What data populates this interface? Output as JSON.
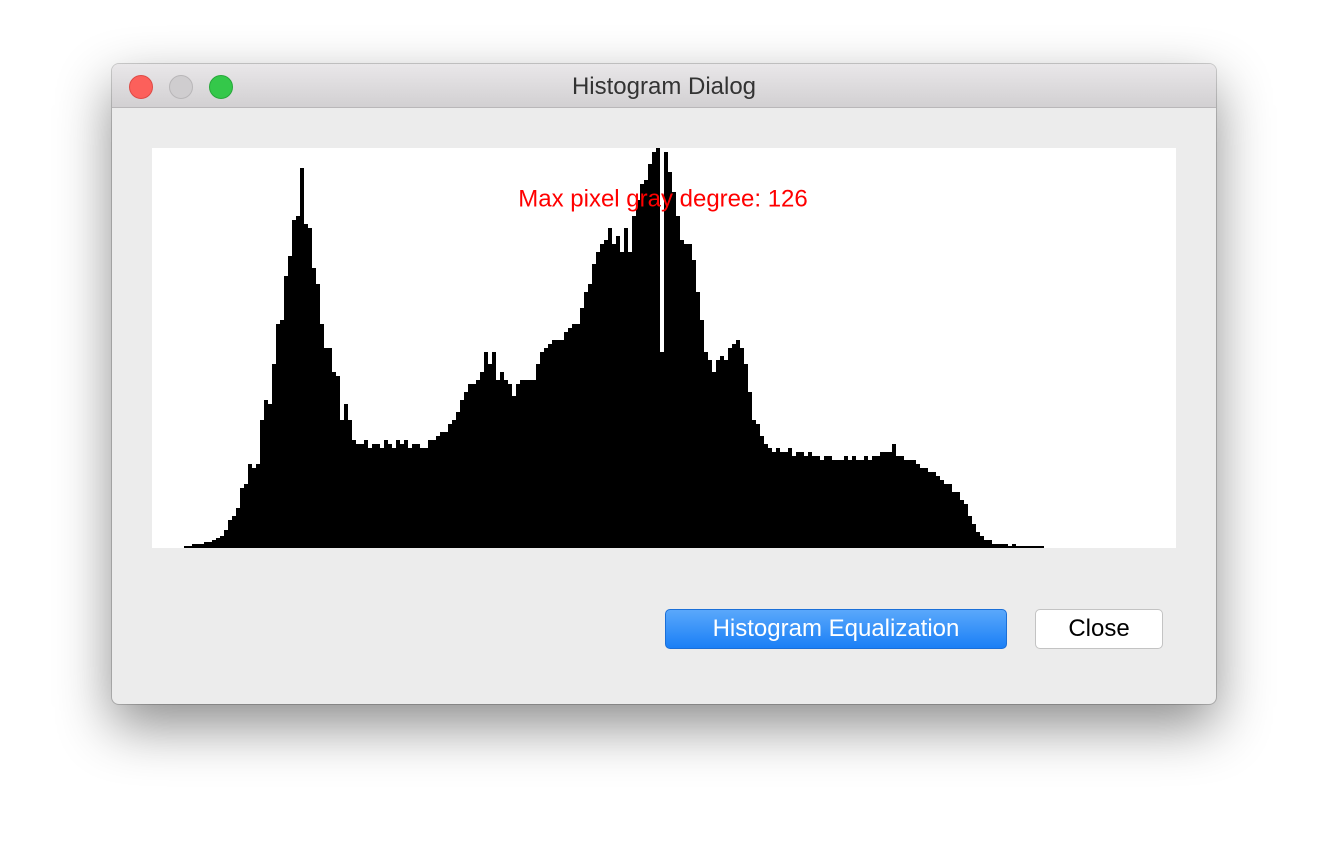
{
  "window": {
    "title": "Histogram Dialog"
  },
  "chart_data": {
    "type": "bar",
    "annotation": "Max pixel gray degree: 126",
    "color": "#000000",
    "ylim": [
      0,
      100
    ],
    "values": [
      0,
      0,
      0,
      0,
      0,
      0,
      0,
      0,
      0.5,
      0.5,
      1,
      1,
      1,
      1.5,
      1.5,
      2,
      2.5,
      3,
      4.5,
      7,
      8,
      10,
      15,
      16,
      21,
      20,
      21,
      32,
      37,
      36,
      46,
      56,
      57,
      68,
      73,
      82,
      83,
      95,
      81,
      80,
      70,
      66,
      56,
      50,
      50,
      44,
      43,
      32,
      36,
      32,
      27,
      26,
      26,
      27,
      25,
      26,
      26,
      25,
      27,
      26,
      25,
      27,
      26,
      27,
      25,
      26,
      26,
      25,
      25,
      27,
      27,
      28,
      29,
      29,
      31,
      32,
      34,
      37,
      39,
      41,
      41,
      42,
      44,
      49,
      46,
      49,
      42,
      44,
      42,
      41,
      38,
      41,
      42,
      42,
      42,
      42,
      46,
      49,
      50,
      51,
      52,
      52,
      52,
      54,
      55,
      56,
      56,
      60,
      64,
      66,
      71,
      74,
      76,
      77,
      80,
      76,
      78,
      74,
      80,
      74,
      83,
      87,
      91,
      92,
      96,
      99,
      100,
      49,
      99,
      94,
      89,
      83,
      77,
      76,
      76,
      72,
      64,
      57,
      49,
      47,
      44,
      47,
      48,
      47,
      50,
      51,
      52,
      50,
      46,
      39,
      32,
      31,
      28,
      26,
      25,
      24,
      25,
      24,
      24,
      25,
      23,
      24,
      24,
      23,
      24,
      23,
      23,
      22,
      23,
      23,
      22,
      22,
      22,
      23,
      22,
      23,
      22,
      22,
      23,
      22,
      23,
      23,
      24,
      24,
      24,
      26,
      23,
      23,
      22,
      22,
      22,
      21,
      20,
      20,
      19,
      19,
      18,
      17,
      16,
      16,
      14,
      14,
      12,
      11,
      8,
      6,
      4,
      3,
      2,
      2,
      1,
      1,
      1,
      1,
      0.5,
      1,
      0.5,
      0.5,
      0.5,
      0.5,
      0.5,
      0.5,
      0.5,
      0,
      0,
      0,
      0,
      0,
      0,
      0,
      0,
      0,
      0,
      0,
      0,
      0,
      0,
      0,
      0,
      0,
      0,
      0,
      0,
      0,
      0,
      0,
      0,
      0,
      0,
      0,
      0,
      0,
      0,
      0,
      0,
      0
    ]
  },
  "buttons": {
    "equalize": "Histogram Equalization",
    "close": "Close"
  }
}
